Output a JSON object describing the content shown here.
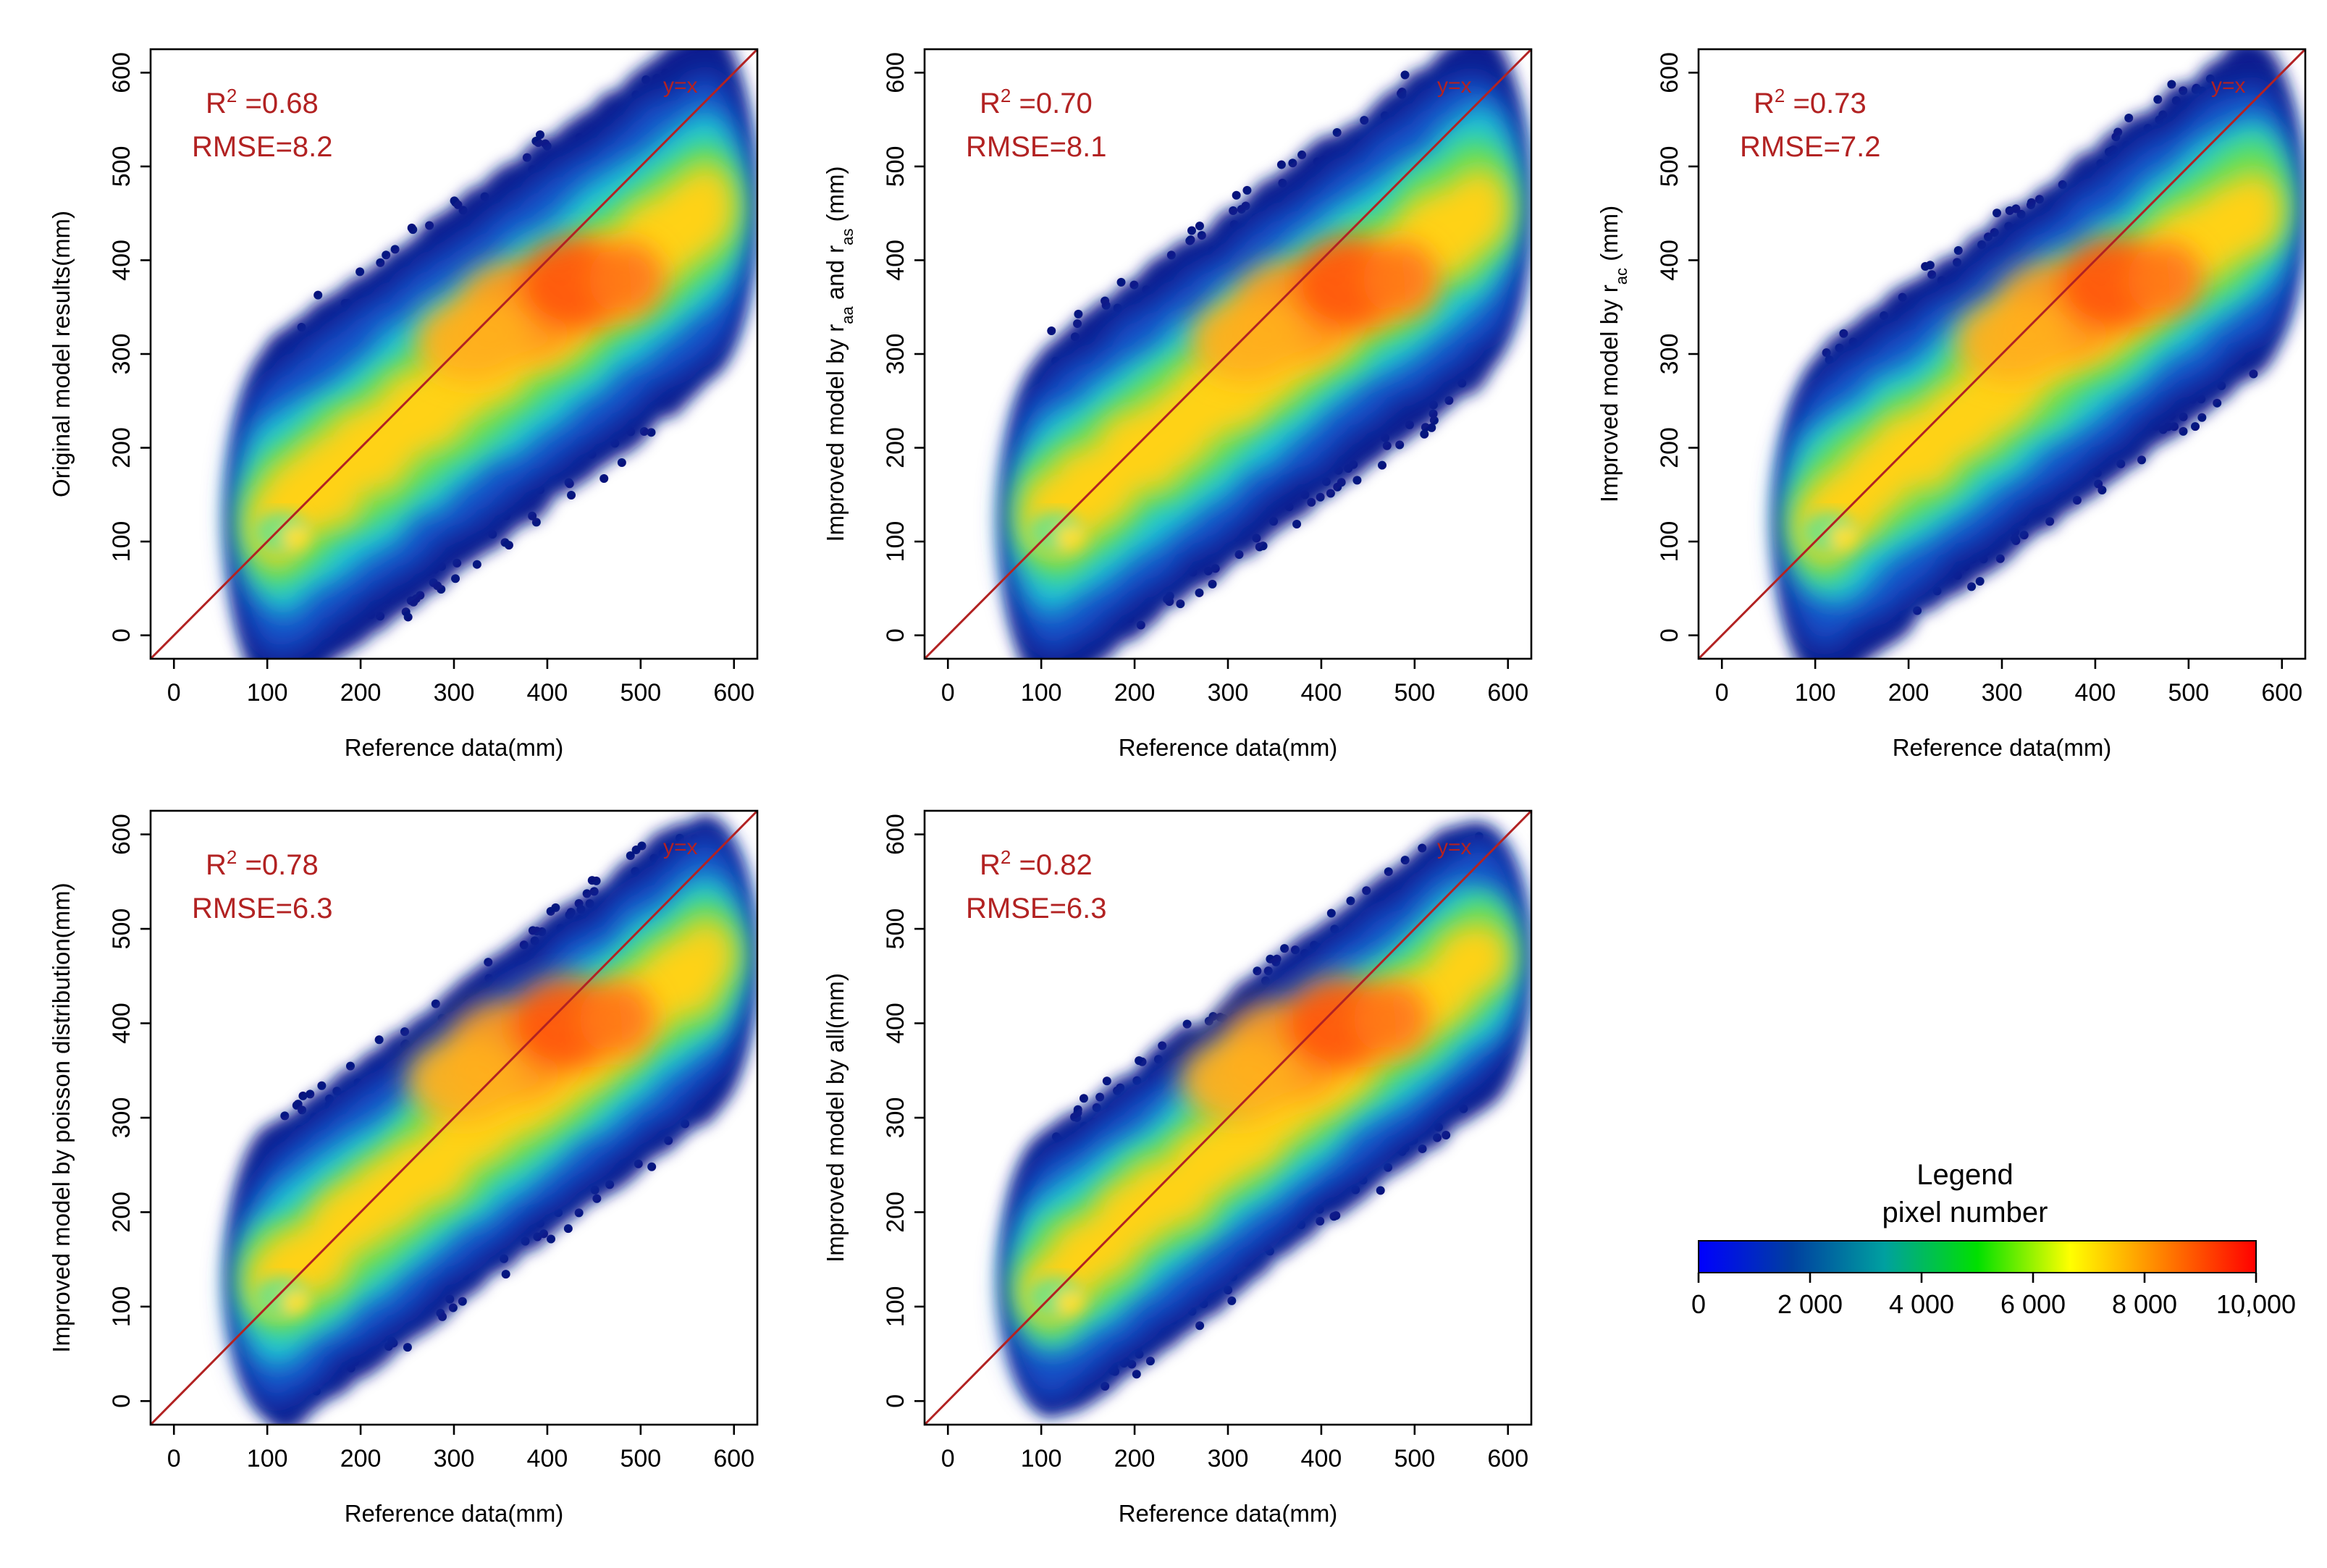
{
  "chart_data": [
    {
      "type": "scatter",
      "style": "density",
      "title": "",
      "xlabel": "Reference data(mm)",
      "ylabel": "Original model results(mm)",
      "ylabel_sub": null,
      "xlim": [
        -25,
        625
      ],
      "ylim": [
        -25,
        625
      ],
      "xticks": [
        0,
        100,
        200,
        300,
        400,
        500,
        600
      ],
      "yticks": [
        0,
        100,
        200,
        300,
        400,
        500,
        600
      ],
      "r2_label": "R",
      "r2_sup": "2",
      "r2_value": " =0.68",
      "rmse_text": "RMSE=8.2",
      "reference_line": "y=x",
      "density_center": [
        430,
        375
      ],
      "density_spread": 1.0
    },
    {
      "type": "scatter",
      "style": "density",
      "title": "",
      "xlabel": "Reference data(mm)",
      "ylabel": "Improved model by r",
      "ylabel_sub": [
        "aa",
        " and r",
        "as",
        " (mm)"
      ],
      "xlim": [
        -25,
        625
      ],
      "ylim": [
        -25,
        625
      ],
      "xticks": [
        0,
        100,
        200,
        300,
        400,
        500,
        600
      ],
      "yticks": [
        0,
        100,
        200,
        300,
        400,
        500,
        600
      ],
      "r2_label": "R",
      "r2_sup": "2",
      "r2_value": " =0.70",
      "rmse_text": "RMSE=8.1",
      "reference_line": "y=x",
      "density_center": [
        430,
        375
      ],
      "density_spread": 0.95
    },
    {
      "type": "scatter",
      "style": "density",
      "title": "",
      "xlabel": "Reference data(mm)",
      "ylabel": "Improved model by r",
      "ylabel_sub": [
        "ac",
        " (mm)"
      ],
      "xlim": [
        -25,
        625
      ],
      "ylim": [
        -25,
        625
      ],
      "xticks": [
        0,
        100,
        200,
        300,
        400,
        500,
        600
      ],
      "yticks": [
        0,
        100,
        200,
        300,
        400,
        500,
        600
      ],
      "r2_label": "R",
      "r2_sup": "2",
      "r2_value": " =0.73",
      "rmse_text": "RMSE=7.2",
      "reference_line": "y=x",
      "density_center": [
        420,
        375
      ],
      "density_spread": 0.9
    },
    {
      "type": "scatter",
      "style": "density",
      "title": "",
      "xlabel": "Reference data(mm)",
      "ylabel": "Improved model by poisson distribution(mm)",
      "ylabel_sub": null,
      "xlim": [
        -25,
        625
      ],
      "ylim": [
        -25,
        625
      ],
      "xticks": [
        0,
        100,
        200,
        300,
        400,
        500,
        600
      ],
      "yticks": [
        0,
        100,
        200,
        300,
        400,
        500,
        600
      ],
      "r2_label": "R",
      "r2_sup": "2",
      "r2_value": " =0.78",
      "rmse_text": "RMSE=6.3",
      "reference_line": "y=x",
      "density_center": [
        420,
        400
      ],
      "density_spread": 0.8
    },
    {
      "type": "scatter",
      "style": "density",
      "title": "",
      "xlabel": "Reference data(mm)",
      "ylabel": "Improved model by all(mm)",
      "ylabel_sub": null,
      "xlim": [
        -25,
        625
      ],
      "ylim": [
        -25,
        625
      ],
      "xticks": [
        0,
        100,
        200,
        300,
        400,
        500,
        600
      ],
      "yticks": [
        0,
        100,
        200,
        300,
        400,
        500,
        600
      ],
      "r2_label": "R",
      "r2_sup": "2",
      "r2_value": " =0.82",
      "rmse_text": "RMSE=6.3",
      "reference_line": "y=x",
      "density_center": [
        420,
        400
      ],
      "density_spread": 0.75
    }
  ],
  "legend": {
    "title_line1": "Legend",
    "title_line2": "pixel number",
    "ticks": [
      "0",
      "2 000",
      "4 000",
      "6 000",
      "8 000",
      "10,000"
    ],
    "tick_values": [
      0,
      2000,
      4000,
      6000,
      8000,
      10000
    ],
    "range": [
      0,
      10000
    ],
    "colors": [
      "#0000ff",
      "#003fa0",
      "#00a0a0",
      "#00e000",
      "#ffff00",
      "#ff8000",
      "#ff0000"
    ]
  }
}
